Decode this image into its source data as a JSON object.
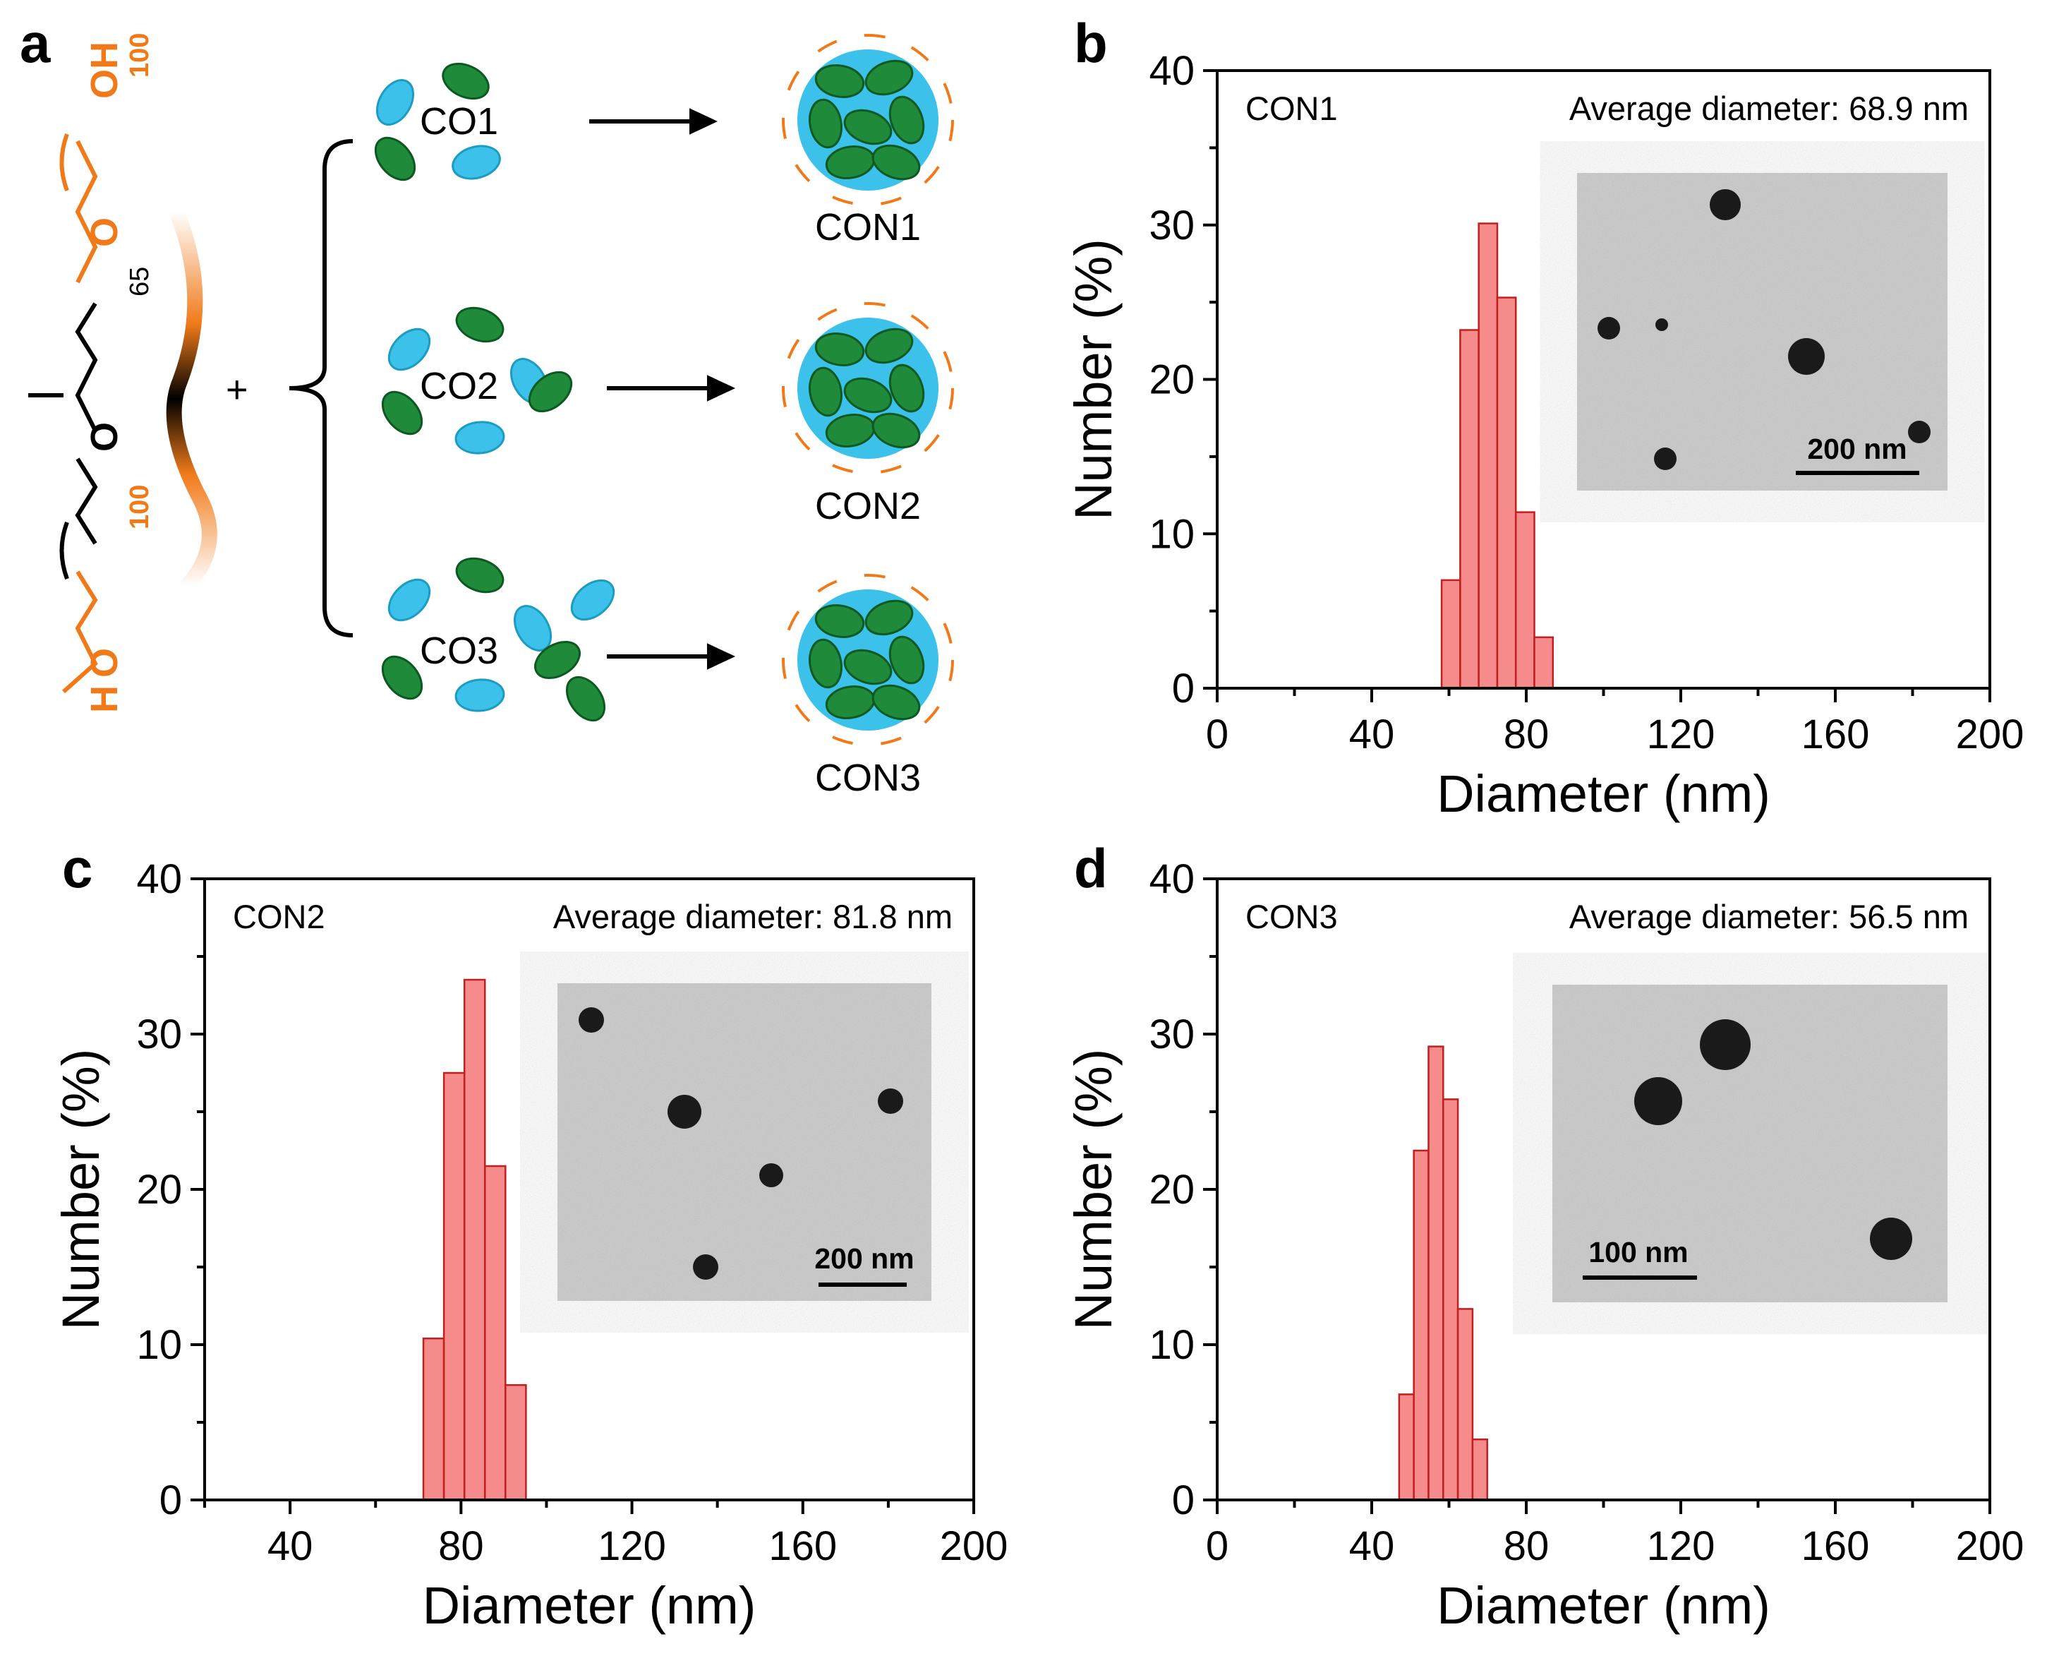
{
  "panel_labels": {
    "a": "a",
    "b": "b",
    "c": "c",
    "d": "d"
  },
  "scheme": {
    "plus": "+",
    "complexes": [
      "CO1",
      "CO2",
      "CO3"
    ],
    "nanoparticles": [
      "CON1",
      "CON2",
      "CON3"
    ],
    "polymer": {
      "oh": "OH",
      "h": "H",
      "o": "O",
      "peo_repeat": "100",
      "ppo_repeat": "65",
      "orange_color": "#f07a19",
      "black_color": "#000000"
    },
    "colors": {
      "green": "#1f8a3a",
      "cyan": "#3cc2ea"
    }
  },
  "chart_data": [
    {
      "type": "bar",
      "panel": "b",
      "sample": "CON1",
      "annotation": "Average diameter: 68.9 nm",
      "xlabel": "Diameter (nm)",
      "ylabel": "Number (%)",
      "xlim": [
        0,
        200
      ],
      "ylim": [
        0,
        40
      ],
      "xticks": [
        "0",
        "40",
        "80",
        "120",
        "160",
        "200"
      ],
      "yticks": [
        "0",
        "10",
        "20",
        "30",
        "40"
      ],
      "bin_width": 4.8,
      "bins": [
        {
          "x": 60.5,
          "value": 7.0
        },
        {
          "x": 65.3,
          "value": 23.2
        },
        {
          "x": 70.1,
          "value": 30.1
        },
        {
          "x": 74.9,
          "value": 25.3
        },
        {
          "x": 79.7,
          "value": 11.4
        },
        {
          "x": 84.5,
          "value": 3.3
        }
      ],
      "inset_scale_bar": "200 nm",
      "bar_color": "#f58b8b"
    },
    {
      "type": "bar",
      "panel": "c",
      "sample": "CON2",
      "annotation": "Average diameter: 81.8 nm",
      "xlabel": "Diameter (nm)",
      "ylabel": "Number (%)",
      "xlim": [
        20,
        200
      ],
      "ylim": [
        0,
        40
      ],
      "xticks": [
        "40",
        "80",
        "120",
        "160",
        "200"
      ],
      "yticks": [
        "0",
        "10",
        "20",
        "30",
        "40"
      ],
      "bin_width": 4.8,
      "bins": [
        {
          "x": 73.6,
          "value": 10.4
        },
        {
          "x": 78.4,
          "value": 27.5
        },
        {
          "x": 83.2,
          "value": 33.5
        },
        {
          "x": 88.0,
          "value": 21.5
        },
        {
          "x": 92.8,
          "value": 7.4
        }
      ],
      "inset_scale_bar": "200 nm",
      "bar_color": "#f58b8b"
    },
    {
      "type": "bar",
      "panel": "d",
      "sample": "CON3",
      "annotation": "Average diameter: 56.5 nm",
      "xlabel": "Diameter (nm)",
      "ylabel": "Number (%)",
      "xlim": [
        0,
        200
      ],
      "ylim": [
        0,
        40
      ],
      "xticks": [
        "0",
        "40",
        "80",
        "120",
        "160",
        "200"
      ],
      "yticks": [
        "0",
        "10",
        "20",
        "30",
        "40"
      ],
      "bin_width": 3.8,
      "bins": [
        {
          "x": 49.0,
          "value": 6.8
        },
        {
          "x": 52.8,
          "value": 22.5
        },
        {
          "x": 56.6,
          "value": 29.2
        },
        {
          "x": 60.4,
          "value": 25.8
        },
        {
          "x": 64.2,
          "value": 12.3
        },
        {
          "x": 68.0,
          "value": 3.9
        }
      ],
      "inset_scale_bar": "100 nm",
      "bar_color": "#f58b8b"
    }
  ]
}
